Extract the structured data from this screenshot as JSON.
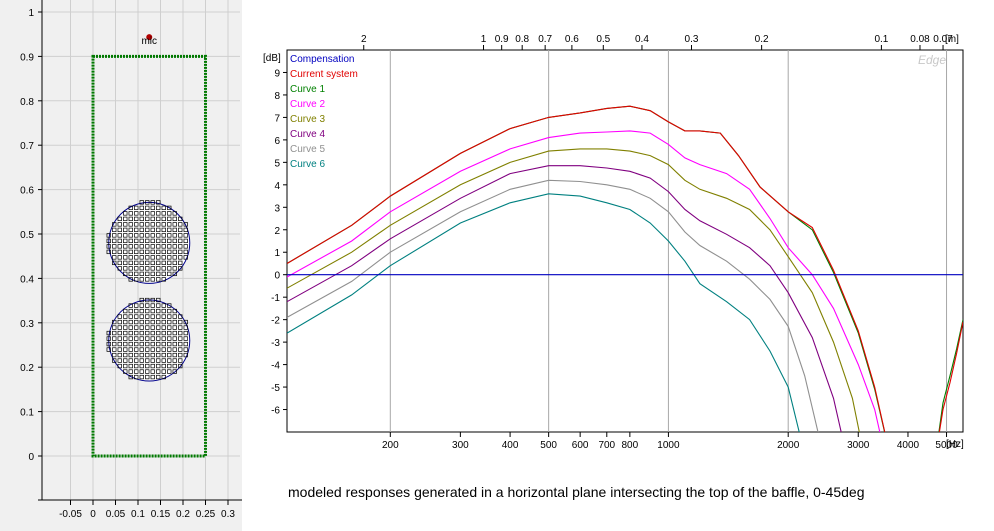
{
  "caption": "modeled responses generated in a horizontal plane intersecting the top of the baffle, 0-45deg",
  "baffle_view": {
    "mic_label": "mic",
    "x_ticks": [
      "-0.05",
      "0",
      "0.05",
      "0.1",
      "0.15",
      "0.2",
      "0.25",
      "0.3"
    ],
    "y_ticks": [
      "0",
      "0.1",
      "0.2",
      "0.3",
      "0.4",
      "0.5",
      "0.6",
      "0.7",
      "0.8",
      "0.9",
      "1"
    ],
    "baffle": {
      "x": [
        0,
        0.25
      ],
      "y": [
        0,
        0.9
      ]
    },
    "drivers": [
      {
        "cx": 0.125,
        "cy": 0.48
      },
      {
        "cx": 0.125,
        "cy": 0.26
      }
    ],
    "mic": {
      "x": 0.125,
      "y": 0.93
    }
  },
  "chart_data": {
    "type": "line",
    "xscale": "log",
    "xlabel_unit": "[Hz]",
    "top_unit": "[m]",
    "ylabel_unit": "[dB]",
    "brand": "Edge",
    "xlim": [
      110,
      5500
    ],
    "ylim": [
      -7,
      10
    ],
    "bottom_ticks": [
      {
        "v": 200,
        "l": "200"
      },
      {
        "v": 300,
        "l": "300"
      },
      {
        "v": 400,
        "l": "400"
      },
      {
        "v": 500,
        "l": "500"
      },
      {
        "v": 600,
        "l": "600"
      },
      {
        "v": 700,
        "l": "700"
      },
      {
        "v": 800,
        "l": "800"
      },
      {
        "v": 1000,
        "l": "1000"
      },
      {
        "v": 2000,
        "l": "2000"
      },
      {
        "v": 3000,
        "l": "3000"
      },
      {
        "v": 4000,
        "l": "4000"
      },
      {
        "v": 5000,
        "l": "5000"
      }
    ],
    "top_ticks": [
      {
        "v": 171.5,
        "l": "2"
      },
      {
        "v": 343,
        "l": "1"
      },
      {
        "v": 381,
        "l": "0.9"
      },
      {
        "v": 429,
        "l": "0.8"
      },
      {
        "v": 490,
        "l": "0.7"
      },
      {
        "v": 572,
        "l": "0.6"
      },
      {
        "v": 686,
        "l": "0.5"
      },
      {
        "v": 858,
        "l": "0.4"
      },
      {
        "v": 1143,
        "l": "0.3"
      },
      {
        "v": 1715,
        "l": "0.2"
      },
      {
        "v": 3430,
        "l": "0.1"
      },
      {
        "v": 4288,
        "l": "0.08"
      },
      {
        "v": 4900,
        "l": "0.07"
      }
    ],
    "y_ticks": [
      9,
      8,
      7,
      6,
      5,
      4,
      3,
      2,
      1,
      0,
      -1,
      -2,
      -3,
      -4,
      -5,
      -6
    ],
    "series": [
      {
        "name": "Compensation",
        "color": "#0000c0",
        "points": [
          [
            110,
            0
          ],
          [
            5500,
            0
          ]
        ]
      },
      {
        "name": "Current system",
        "color": "#e00000",
        "points": [
          [
            110,
            0.5
          ],
          [
            160,
            2.2
          ],
          [
            200,
            3.5
          ],
          [
            300,
            5.4
          ],
          [
            400,
            6.5
          ],
          [
            500,
            7.0
          ],
          [
            600,
            7.2
          ],
          [
            700,
            7.4
          ],
          [
            800,
            7.5
          ],
          [
            900,
            7.3
          ],
          [
            1000,
            6.8
          ],
          [
            1100,
            6.4
          ],
          [
            1200,
            6.4
          ],
          [
            1350,
            6.3
          ],
          [
            1500,
            5.3
          ],
          [
            1700,
            3.9
          ],
          [
            2000,
            2.8
          ],
          [
            2300,
            2.1
          ],
          [
            2600,
            0.2
          ],
          [
            3000,
            -2.5
          ],
          [
            3300,
            -5
          ],
          [
            3600,
            -8
          ],
          [
            4700,
            -8
          ],
          [
            4900,
            -6
          ],
          [
            5100,
            -4.8
          ],
          [
            5300,
            -3.5
          ],
          [
            5500,
            -2.1
          ]
        ]
      },
      {
        "name": "Curve 1",
        "color": "#008000",
        "points": [
          [
            110,
            0.5
          ],
          [
            160,
            2.2
          ],
          [
            200,
            3.5
          ],
          [
            300,
            5.4
          ],
          [
            400,
            6.5
          ],
          [
            500,
            7.0
          ],
          [
            600,
            7.2
          ],
          [
            700,
            7.4
          ],
          [
            800,
            7.5
          ],
          [
            900,
            7.3
          ],
          [
            1000,
            6.8
          ],
          [
            1100,
            6.4
          ],
          [
            1200,
            6.4
          ],
          [
            1350,
            6.3
          ],
          [
            1500,
            5.3
          ],
          [
            1700,
            3.9
          ],
          [
            2000,
            2.8
          ],
          [
            2300,
            2.0
          ],
          [
            2600,
            0.1
          ],
          [
            3000,
            -2.6
          ],
          [
            3300,
            -5.1
          ],
          [
            3600,
            -8
          ],
          [
            4700,
            -8
          ],
          [
            4900,
            -5.7
          ],
          [
            5100,
            -4.5
          ],
          [
            5300,
            -3.3
          ],
          [
            5500,
            -2.0
          ]
        ]
      },
      {
        "name": "Curve 2",
        "color": "#ff00ff",
        "points": [
          [
            110,
            -0.1
          ],
          [
            160,
            1.5
          ],
          [
            200,
            2.8
          ],
          [
            300,
            4.6
          ],
          [
            400,
            5.6
          ],
          [
            500,
            6.1
          ],
          [
            600,
            6.3
          ],
          [
            700,
            6.35
          ],
          [
            800,
            6.4
          ],
          [
            900,
            6.3
          ],
          [
            1000,
            5.8
          ],
          [
            1100,
            5.2
          ],
          [
            1200,
            4.9
          ],
          [
            1400,
            4.5
          ],
          [
            1600,
            3.8
          ],
          [
            1800,
            2.5
          ],
          [
            2000,
            1.2
          ],
          [
            2300,
            0
          ],
          [
            2600,
            -1.5
          ],
          [
            3000,
            -4
          ],
          [
            3300,
            -6
          ],
          [
            3500,
            -8
          ]
        ]
      },
      {
        "name": "Curve 3",
        "color": "#808000",
        "points": [
          [
            110,
            -0.6
          ],
          [
            160,
            1.0
          ],
          [
            200,
            2.2
          ],
          [
            300,
            4.0
          ],
          [
            400,
            5.0
          ],
          [
            500,
            5.5
          ],
          [
            600,
            5.6
          ],
          [
            700,
            5.6
          ],
          [
            800,
            5.5
          ],
          [
            900,
            5.3
          ],
          [
            1000,
            4.9
          ],
          [
            1100,
            4.2
          ],
          [
            1200,
            3.8
          ],
          [
            1400,
            3.4
          ],
          [
            1600,
            2.9
          ],
          [
            1800,
            2.0
          ],
          [
            2000,
            0.8
          ],
          [
            2300,
            -0.8
          ],
          [
            2600,
            -3
          ],
          [
            2900,
            -5.5
          ],
          [
            3100,
            -8
          ]
        ]
      },
      {
        "name": "Curve 4",
        "color": "#800080",
        "points": [
          [
            110,
            -1.2
          ],
          [
            160,
            0.4
          ],
          [
            200,
            1.6
          ],
          [
            300,
            3.4
          ],
          [
            400,
            4.5
          ],
          [
            500,
            4.85
          ],
          [
            600,
            4.85
          ],
          [
            700,
            4.75
          ],
          [
            800,
            4.6
          ],
          [
            900,
            4.3
          ],
          [
            1000,
            3.7
          ],
          [
            1100,
            2.9
          ],
          [
            1200,
            2.4
          ],
          [
            1400,
            1.8
          ],
          [
            1600,
            1.2
          ],
          [
            1800,
            0.4
          ],
          [
            2000,
            -0.8
          ],
          [
            2300,
            -2.8
          ],
          [
            2600,
            -5.5
          ],
          [
            2800,
            -8
          ]
        ]
      },
      {
        "name": "Curve 5",
        "color": "#909090",
        "points": [
          [
            110,
            -1.9
          ],
          [
            160,
            -0.3
          ],
          [
            200,
            1.0
          ],
          [
            300,
            2.8
          ],
          [
            400,
            3.8
          ],
          [
            500,
            4.2
          ],
          [
            600,
            4.15
          ],
          [
            700,
            4.0
          ],
          [
            800,
            3.8
          ],
          [
            900,
            3.4
          ],
          [
            1000,
            2.8
          ],
          [
            1100,
            1.9
          ],
          [
            1200,
            1.3
          ],
          [
            1400,
            0.6
          ],
          [
            1600,
            -0.2
          ],
          [
            1800,
            -1.1
          ],
          [
            2000,
            -2.3
          ],
          [
            2200,
            -4.5
          ],
          [
            2450,
            -8
          ]
        ]
      },
      {
        "name": "Curve 6",
        "color": "#008080",
        "points": [
          [
            110,
            -2.6
          ],
          [
            160,
            -0.9
          ],
          [
            200,
            0.4
          ],
          [
            300,
            2.3
          ],
          [
            400,
            3.2
          ],
          [
            500,
            3.6
          ],
          [
            600,
            3.5
          ],
          [
            700,
            3.2
          ],
          [
            800,
            2.9
          ],
          [
            900,
            2.3
          ],
          [
            1000,
            1.5
          ],
          [
            1100,
            0.6
          ],
          [
            1200,
            -0.4
          ],
          [
            1400,
            -1.2
          ],
          [
            1600,
            -2
          ],
          [
            1800,
            -3.4
          ],
          [
            2000,
            -5
          ],
          [
            2200,
            -8
          ]
        ]
      }
    ]
  }
}
